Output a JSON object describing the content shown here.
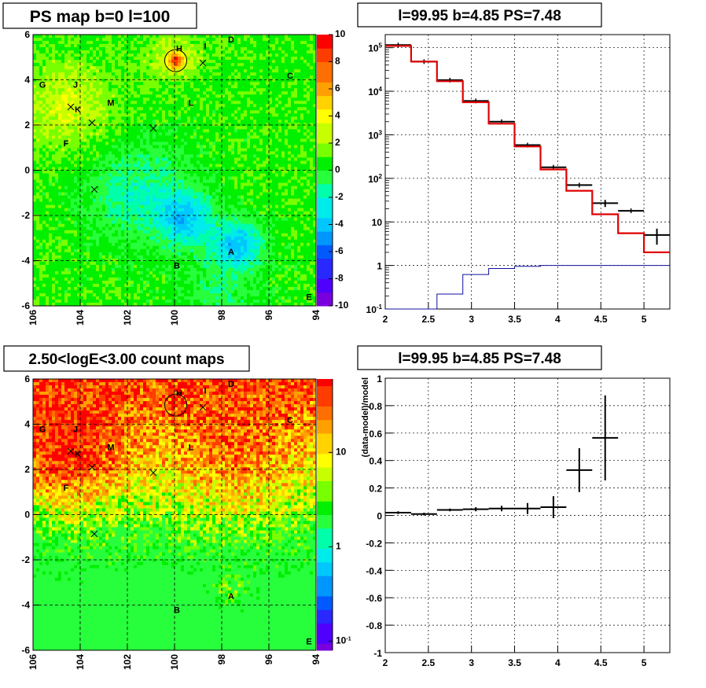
{
  "chart_data": [
    {
      "type": "heatmap",
      "title": "PS map b=0 l=100",
      "xlim": [
        106,
        94
      ],
      "ylim": [
        -6,
        6
      ],
      "xticks": [
        "106",
        "104",
        "102",
        "100",
        "98",
        "96",
        "94"
      ],
      "yticks": [
        "-6",
        "-4",
        "-2",
        "0",
        "2",
        "4",
        "6"
      ],
      "colorbar": {
        "range": [
          -10,
          10
        ],
        "ticks": [
          "-10",
          "-8",
          "-6",
          "-4",
          "-2",
          "0",
          "2",
          "4",
          "6",
          "8",
          "10"
        ]
      },
      "grid": true,
      "palette": "green-dominant residual map; blue low (~-5) region near l=97.5 b=-3.5 and l=100 b=-2; red/orange hot spot near l=100 b=4.85",
      "sources": [
        {
          "name": "H",
          "l": 99.8,
          "b": 5.4
        },
        {
          "name": "I",
          "l": 98.7,
          "b": 5.5
        },
        {
          "name": "D",
          "l": 97.6,
          "b": 5.8
        },
        {
          "name": "C",
          "l": 95.1,
          "b": 4.2
        },
        {
          "name": "G",
          "l": 105.6,
          "b": 3.8
        },
        {
          "name": "J",
          "l": 104.2,
          "b": 3.8
        },
        {
          "name": "K",
          "l": 104.1,
          "b": 2.7
        },
        {
          "name": "M",
          "l": 102.7,
          "b": 3.0
        },
        {
          "name": "L",
          "l": 99.3,
          "b": 3.0
        },
        {
          "name": "F",
          "l": 104.6,
          "b": 1.2
        },
        {
          "name": "A",
          "l": 97.6,
          "b": -3.6
        },
        {
          "name": "B",
          "l": 99.9,
          "b": -4.2
        },
        {
          "name": "E",
          "l": 94.3,
          "b": -5.6
        }
      ],
      "crosses": [
        {
          "l": 98.8,
          "b": 4.75
        },
        {
          "l": 104.4,
          "b": 2.8
        },
        {
          "l": 103.5,
          "b": 2.1
        },
        {
          "l": 100.9,
          "b": 1.85
        },
        {
          "l": 103.4,
          "b": -0.85
        }
      ],
      "circle": {
        "l": 99.95,
        "b": 4.85
      }
    },
    {
      "type": "line",
      "title": "l=99.95 b=4.85 PS=7.48",
      "xlim": [
        2,
        5.3
      ],
      "ylim": [
        0.1,
        200000
      ],
      "yscale": "log",
      "xticks": [
        "2",
        "2.5",
        "3",
        "3.5",
        "4",
        "4.5",
        "5"
      ],
      "yticks": [
        {
          "v": 0.1,
          "b": "10",
          "e": "-1"
        },
        {
          "v": 1,
          "b": "1",
          "e": ""
        },
        {
          "v": 10,
          "b": "10",
          "e": ""
        },
        {
          "v": 100,
          "b": "10",
          "e": "2"
        },
        {
          "v": 1000,
          "b": "10",
          "e": "3"
        },
        {
          "v": 10000,
          "b": "10",
          "e": "4"
        },
        {
          "v": 100000,
          "b": "10",
          "e": "5"
        }
      ],
      "grid": true,
      "series": [
        {
          "kind": "data",
          "color": "#000000",
          "bins": [
            2.0,
            2.3,
            2.6,
            2.9,
            3.2,
            3.5,
            3.8,
            4.1,
            4.4,
            4.7,
            5.0,
            5.3
          ],
          "values": [
            115000,
            48000,
            18000,
            6000,
            2000,
            580,
            180,
            70,
            27,
            18,
            5
          ],
          "errors": [
            0,
            0,
            0,
            0,
            0,
            0,
            0,
            0,
            5,
            0,
            2
          ]
        },
        {
          "kind": "model",
          "color": "#e00000",
          "bins": [
            2.0,
            2.3,
            2.6,
            2.9,
            3.2,
            3.5,
            3.8,
            4.1,
            4.4,
            4.7,
            5.0,
            5.3
          ],
          "values": [
            110000,
            48000,
            17000,
            5600,
            1800,
            540,
            160,
            52,
            15,
            5.5,
            2
          ]
        },
        {
          "kind": "source",
          "color": "#1010a0",
          "bins": [
            2.0,
            2.3,
            2.6,
            2.9,
            3.2,
            3.5,
            3.8,
            4.1,
            4.4,
            4.7,
            5.0,
            5.3
          ],
          "values": [
            0.1,
            0.1,
            0.22,
            0.62,
            0.85,
            0.95,
            1,
            1,
            1,
            1,
            1
          ]
        }
      ]
    },
    {
      "type": "heatmap",
      "title": "2.50<logE<3.00 count maps",
      "xlim": [
        106,
        94
      ],
      "ylim": [
        -6,
        6
      ],
      "xticks": [
        "106",
        "104",
        "102",
        "100",
        "98",
        "96",
        "94"
      ],
      "yticks": [
        "-6",
        "-4",
        "-2",
        "0",
        "2",
        "4",
        "6"
      ],
      "colorbar": {
        "scale": "log",
        "range": [
          0.08,
          60
        ],
        "ticks": [
          {
            "v": 0.1,
            "b": "10",
            "e": "-1"
          },
          {
            "v": 1,
            "b": "1",
            "e": ""
          },
          {
            "v": 10,
            "b": "10",
            "e": ""
          }
        ]
      },
      "grid": true,
      "palette": "counts map; red/orange band at high b near plane, yellow/green at low b",
      "sources": "same as first map",
      "crosses": "same as first map",
      "circle": {
        "l": 99.95,
        "b": 4.85
      }
    },
    {
      "type": "scatter",
      "title": "l=99.95 b=4.85 PS=7.48",
      "ylabel": "(data-model)/model",
      "xlim": [
        2,
        5.3
      ],
      "ylim": [
        -1,
        1
      ],
      "xticks": [
        "2",
        "2.5",
        "3",
        "3.5",
        "4",
        "4.5",
        "5"
      ],
      "yticks": [
        "-1",
        "-0.8",
        "-0.6",
        "-0.4",
        "-0.2",
        "0",
        "0.2",
        "0.4",
        "0.6",
        "0.8",
        "1"
      ],
      "grid": true,
      "points": [
        {
          "x": 2.15,
          "xerr": 0.15,
          "y": 0.02,
          "yerr": 0.01
        },
        {
          "x": 2.45,
          "xerr": 0.15,
          "y": 0.01,
          "yerr": 0.01
        },
        {
          "x": 2.75,
          "xerr": 0.15,
          "y": 0.04,
          "yerr": 0.01
        },
        {
          "x": 3.05,
          "xerr": 0.15,
          "y": 0.045,
          "yerr": 0.015
        },
        {
          "x": 3.35,
          "xerr": 0.15,
          "y": 0.05,
          "yerr": 0.02
        },
        {
          "x": 3.65,
          "xerr": 0.15,
          "y": 0.05,
          "yerr": 0.04
        },
        {
          "x": 3.95,
          "xerr": 0.15,
          "y": 0.06,
          "yerr": 0.08
        },
        {
          "x": 4.25,
          "xerr": 0.15,
          "y": 0.33,
          "yerr": 0.16
        },
        {
          "x": 4.55,
          "xerr": 0.15,
          "y": 0.565,
          "yerr": 0.31
        }
      ]
    }
  ]
}
